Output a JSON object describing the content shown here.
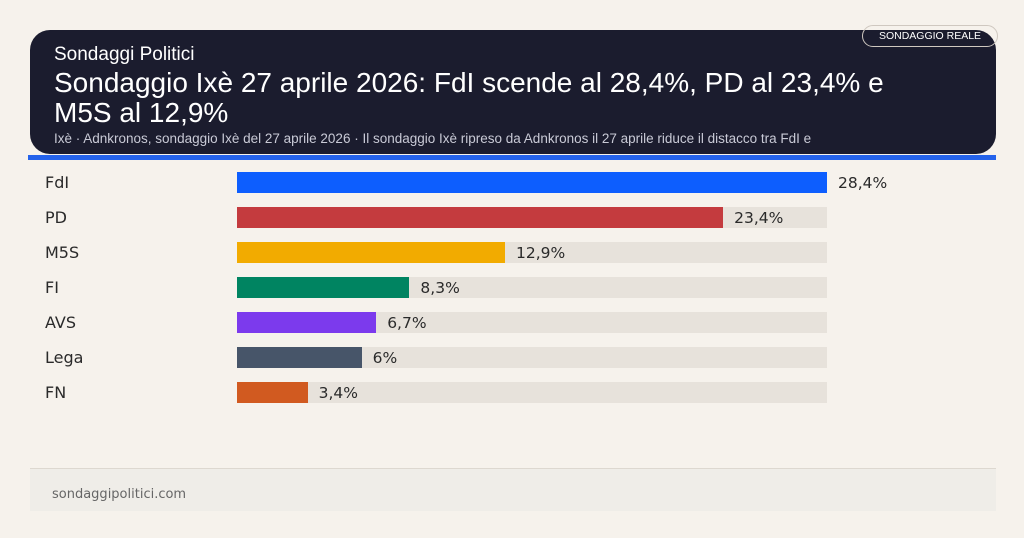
{
  "header": {
    "kicker": "Sondaggi Politici",
    "title": "Sondaggio Ixè 27 aprile 2026: FdI scende al 28,4%, PD al 23,4% e M5S al 12,9%",
    "subtitle": "Ixè · Adnkronos, sondaggio Ixè del 27 aprile 2026 · Il sondaggio Ixè ripreso da Adnkronos il 27 aprile riduce il distacco tra FdI e",
    "badge": "SONDAGGIO REALE",
    "accent_color": "#2563eb"
  },
  "chart_data": {
    "type": "bar",
    "orientation": "horizontal",
    "categories": [
      "FdI",
      "PD",
      "M5S",
      "FI",
      "AVS",
      "Lega",
      "FN"
    ],
    "values": [
      28.4,
      23.4,
      12.9,
      8.3,
      6.7,
      6,
      3.4
    ],
    "value_labels": [
      "28,4%",
      "23,4%",
      "12,9%",
      "8,3%",
      "6,7%",
      "6%",
      "3,4%"
    ],
    "colors": [
      "#0d5efe",
      "#c43b3e",
      "#f2ab00",
      "#008461",
      "#7c3aed",
      "#475569",
      "#d15a20"
    ],
    "xlim": [
      0,
      28.4
    ],
    "grid": false
  },
  "footer": {
    "site": "sondaggipolitici.com"
  }
}
